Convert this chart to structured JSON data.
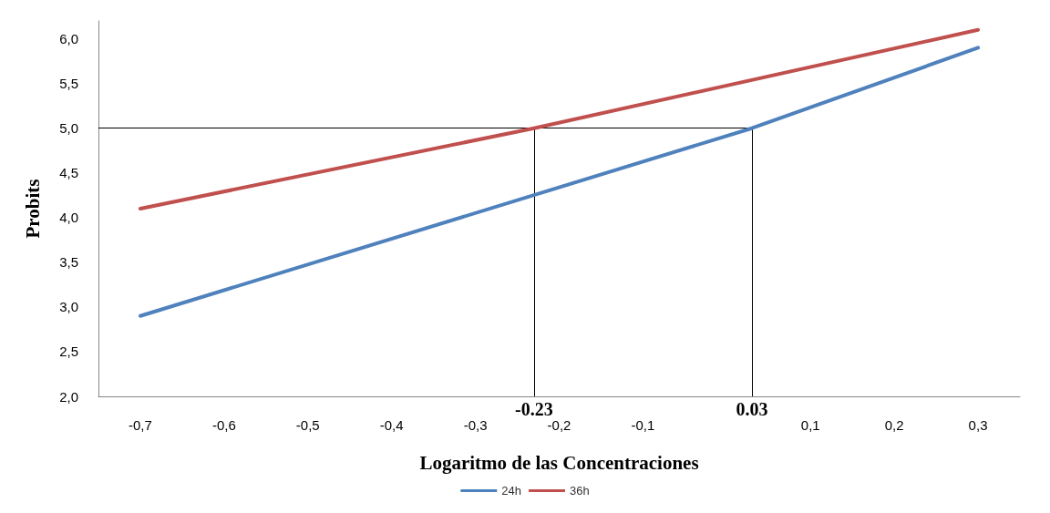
{
  "chart_data": {
    "type": "line",
    "xlabel": "Logaritmo de las Concentraciones",
    "ylabel": "Probits",
    "xlim": [
      -0.75,
      0.35
    ],
    "xticks": [
      {
        "value": -0.7,
        "label": "-0,7"
      },
      {
        "value": -0.6,
        "label": "-0,6"
      },
      {
        "value": -0.5,
        "label": "-0,5"
      },
      {
        "value": -0.4,
        "label": "-0,4"
      },
      {
        "value": -0.3,
        "label": "-0,3"
      },
      {
        "value": -0.2,
        "label": "-0,2"
      },
      {
        "value": -0.1,
        "label": "-0,1"
      },
      {
        "value": 0.1,
        "label": "0,1"
      },
      {
        "value": 0.2,
        "label": "0,2"
      },
      {
        "value": 0.3,
        "label": "0,3"
      }
    ],
    "ylim": [
      2,
      6.2
    ],
    "yticks": [
      {
        "value": 2,
        "label": "2,0"
      },
      {
        "value": 2.5,
        "label": "2,5"
      },
      {
        "value": 3,
        "label": "3,0"
      },
      {
        "value": 3.5,
        "label": "3,5"
      },
      {
        "value": 4,
        "label": "4,0"
      },
      {
        "value": 4.5,
        "label": "4,5"
      },
      {
        "value": 5,
        "label": "5,0"
      },
      {
        "value": 5.5,
        "label": "5,5"
      },
      {
        "value": 6,
        "label": "6,0"
      }
    ],
    "series": [
      {
        "name": "24h",
        "color": "#4f81bd",
        "x": [
          -0.7,
          0.03,
          0.3
        ],
        "values": [
          2.9,
          5.0,
          5.9
        ]
      },
      {
        "name": "36h",
        "color": "#c0504d",
        "x": [
          -0.7,
          -0.23,
          0.3
        ],
        "values": [
          4.1,
          5.0,
          6.1
        ]
      }
    ],
    "ref_lines": [
      {
        "axis": "y",
        "value": 5,
        "label": null,
        "color": "#000000"
      },
      {
        "axis": "x",
        "value": -0.23,
        "label": "-0.23",
        "color": "#000000"
      },
      {
        "axis": "x",
        "value": 0.03,
        "label": "0.03",
        "color": "#000000"
      }
    ],
    "grid": false,
    "legend": "bottom",
    "marker": "none",
    "line_style": "solid"
  }
}
